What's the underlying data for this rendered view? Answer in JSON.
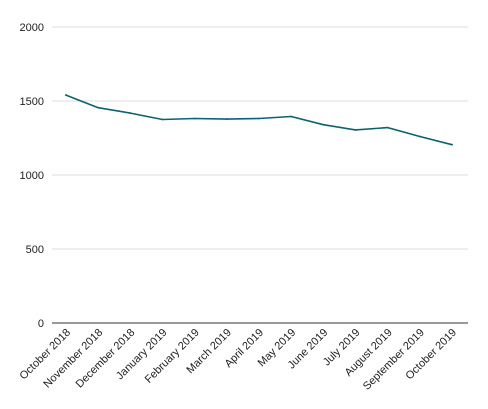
{
  "chart_data": {
    "type": "line",
    "title": "",
    "xlabel": "",
    "ylabel": "",
    "ylim": [
      0,
      2000
    ],
    "y_ticks": [
      0,
      500,
      1000,
      1500,
      2000
    ],
    "y_tick_labels": [
      "0",
      "500",
      "1000",
      "1500",
      "2000"
    ],
    "categories": [
      "October 2018",
      "November 2018",
      "December 2018",
      "January 2019",
      "February 2019",
      "March 2019",
      "April 2019",
      "May 2019",
      "June 2019",
      "July 2019",
      "August 2019",
      "September 2019",
      "October 2019"
    ],
    "series": [
      {
        "color": "#0b6270",
        "values": [
          1540,
          1455,
          1418,
          1375,
          1382,
          1378,
          1382,
          1395,
          1340,
          1305,
          1320,
          1260,
          1205
        ]
      }
    ],
    "grid": true,
    "legend": "none"
  }
}
